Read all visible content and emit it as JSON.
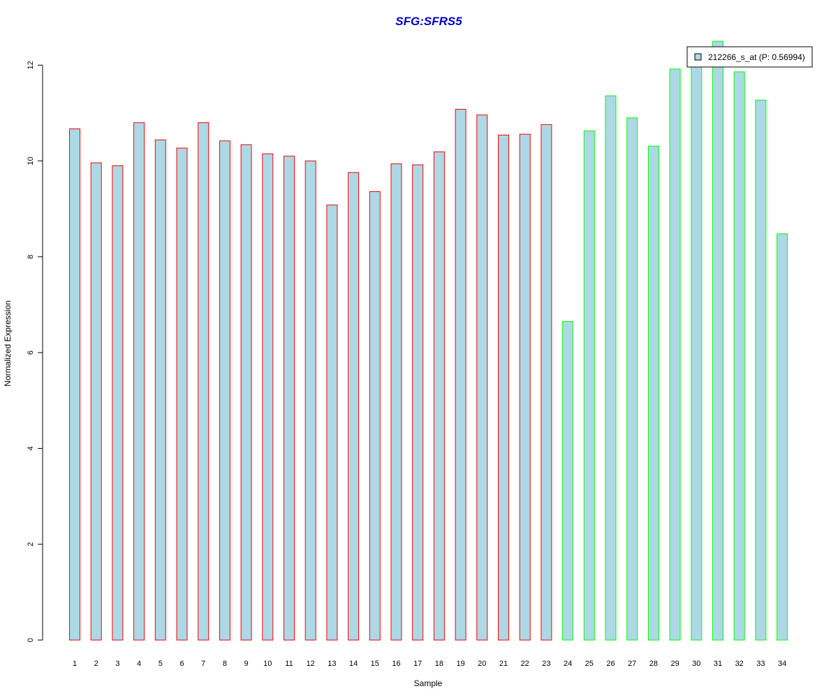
{
  "chart_data": {
    "type": "bar",
    "title": "SFG:SFRS5",
    "xlabel": "Sample",
    "ylabel": "Normalized Expression",
    "ylim": [
      0,
      12.5
    ],
    "yticks": [
      0,
      2,
      4,
      6,
      8,
      10,
      12
    ],
    "grid": false,
    "legend_position": "top-right",
    "categories": [
      "1",
      "2",
      "3",
      "4",
      "5",
      "6",
      "7",
      "8",
      "9",
      "10",
      "11",
      "12",
      "13",
      "14",
      "15",
      "16",
      "17",
      "18",
      "19",
      "20",
      "21",
      "22",
      "23",
      "24",
      "25",
      "26",
      "27",
      "28",
      "29",
      "30",
      "31",
      "32",
      "33",
      "34"
    ],
    "series": [
      {
        "name": "212266_s_at (P: 0.56994)",
        "fill_color": "#add8e6",
        "values": [
          10.67,
          9.96,
          9.9,
          10.8,
          10.44,
          10.27,
          10.8,
          10.42,
          10.34,
          10.15,
          10.1,
          10.0,
          9.08,
          9.76,
          9.36,
          9.94,
          9.92,
          10.19,
          11.08,
          10.96,
          10.54,
          10.56,
          10.76,
          6.65,
          10.63,
          11.36,
          10.9,
          10.31,
          11.92,
          12.0,
          12.5,
          11.86,
          11.27,
          8.48
        ],
        "groups": [
          "a",
          "a",
          "a",
          "a",
          "a",
          "a",
          "a",
          "a",
          "a",
          "a",
          "a",
          "a",
          "a",
          "a",
          "a",
          "a",
          "a",
          "a",
          "a",
          "a",
          "a",
          "a",
          "a",
          "b",
          "b",
          "b",
          "b",
          "b",
          "b",
          "b",
          "b",
          "b",
          "b",
          "b"
        ]
      }
    ],
    "group_border_colors": {
      "a": "#ff0000",
      "b": "#00ff00"
    }
  }
}
